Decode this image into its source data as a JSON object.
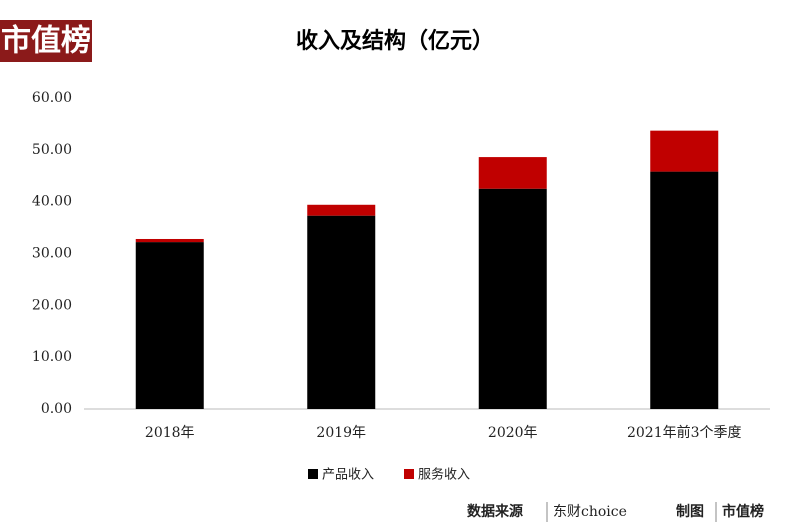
{
  "logo": "市值榜",
  "footer": {
    "source_label": "数据来源",
    "source": "东财choice",
    "credit_label": "制图",
    "credit": "市值榜"
  },
  "chart_data": {
    "type": "stacked-bar",
    "title": "收入及结构（亿元）",
    "categories": [
      "2018年",
      "2019年",
      "2020年",
      "2021年前3个季度"
    ],
    "series": [
      {
        "name": "产品收入",
        "color": "#000000",
        "values": [
          32.2,
          37.3,
          42.5,
          45.8
        ]
      },
      {
        "name": "服务收入",
        "color": "#c00000",
        "values": [
          0.6,
          2.1,
          6.1,
          7.9
        ]
      }
    ],
    "ylim": [
      0,
      60
    ],
    "yticks": [
      {
        "value": 0,
        "label": "0.00"
      },
      {
        "value": 10,
        "label": "10.00"
      },
      {
        "value": 20,
        "label": "20.00"
      },
      {
        "value": 30,
        "label": "30.00"
      },
      {
        "value": 40,
        "label": "40.00"
      },
      {
        "value": 50,
        "label": "50.00"
      },
      {
        "value": 60,
        "label": "60.00"
      }
    ],
    "legend": "bottom"
  }
}
